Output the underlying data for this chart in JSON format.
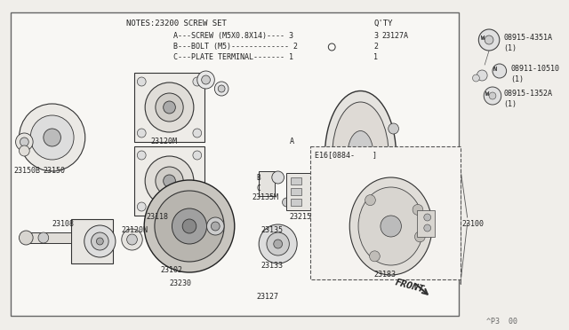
{
  "bg_color": "#f0eeea",
  "border_color": "#888888",
  "text_color": "#222222",
  "notes_text": "NOTES:23200 SCREW SET",
  "qty_text": "Q'TY",
  "notes_a": "A---SCREW (M5X0.8X14)---- 3",
  "notes_b": "B---BOLT (M5)------------- 2",
  "notes_c": "C---PLATE TERMINAL------- 1",
  "part_23127A": "23127A",
  "footer_text": "^P3  00",
  "front_label": "FRONT",
  "inset_label": "E16[0884-    ]",
  "right_labels": [
    {
      "sym": "W",
      "code": "08915-4351A",
      "qty": "(1)"
    },
    {
      "sym": "N",
      "code": "08911-10510",
      "qty": "(1)"
    },
    {
      "sym": "W",
      "code": "08915-1352A",
      "qty": "(1)"
    }
  ]
}
